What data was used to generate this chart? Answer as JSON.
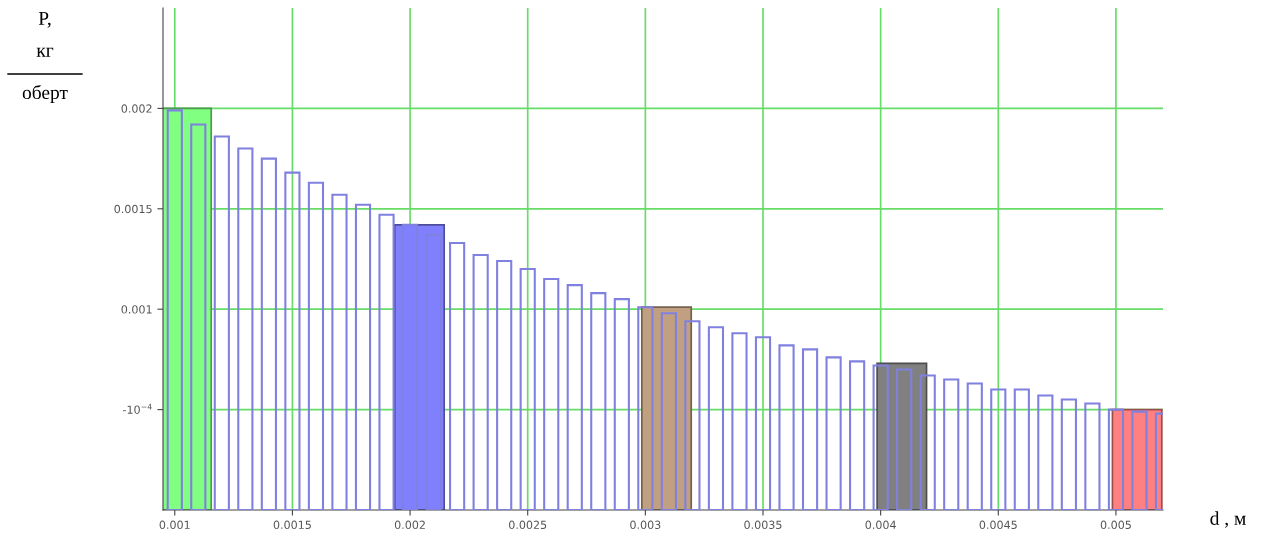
{
  "chart_data": {
    "type": "bar",
    "xlabel": "d , м",
    "ylabel": "P,",
    "annotations": [
      "кг",
      "оберт"
    ],
    "xlim": [
      0.00095,
      0.0052
    ],
    "xticks": [
      0.001,
      0.0015,
      0.002,
      0.0025,
      0.003,
      0.0035,
      0.004,
      0.0045,
      0.005
    ],
    "ylim": [
      0,
      0.0025
    ],
    "yticks": [
      {
        "value": 0.0005,
        "label": "-10$^{−4}$"
      },
      0.001,
      0.0015,
      0.002
    ],
    "grid": true,
    "series": [
      {
        "x": [
          0.00105,
          0.00204,
          0.00309,
          0.00409,
          0.00509
        ],
        "values": [
          0.002,
          0.00142,
          0.00101,
          0.00073,
          0.0005
        ],
        "colors": [
          "#80ff80",
          "#8080ff",
          "#c0a080",
          "#808080",
          "#ff8080"
        ]
      },
      {
        "color": "#8080e0",
        "x": [
          0.001,
          0.0011,
          0.0012,
          0.0013,
          0.0014,
          0.0015,
          0.0016,
          0.0017,
          0.0018,
          0.0019,
          0.002,
          0.0021,
          0.0022,
          0.0023,
          0.0024,
          0.0025,
          0.0026,
          0.0027,
          0.0028,
          0.0029,
          0.003,
          0.0031,
          0.0032,
          0.0033,
          0.0034,
          0.0035,
          0.0036,
          0.0037,
          0.0038,
          0.0039,
          0.004,
          0.0041,
          0.0042,
          0.0043,
          0.0044,
          0.0045,
          0.0046,
          0.0047,
          0.0048,
          0.0049,
          0.005,
          0.0051,
          0.0052
        ],
        "values": [
          0.00199,
          0.00192,
          0.00186,
          0.0018,
          0.00175,
          0.00168,
          0.00163,
          0.00157,
          0.00152,
          0.00147,
          0.00142,
          0.00137,
          0.00133,
          0.00127,
          0.00124,
          0.0012,
          0.00115,
          0.00112,
          0.00108,
          0.00105,
          0.00101,
          0.00098,
          0.00094,
          0.00091,
          0.00088,
          0.00086,
          0.00082,
          0.0008,
          0.00076,
          0.00074,
          0.00072,
          0.0007,
          0.00067,
          0.00065,
          0.00063,
          0.0006,
          0.0006,
          0.00057,
          0.00055,
          0.00053,
          0.0005,
          0.00049,
          0.00048
        ]
      }
    ]
  }
}
